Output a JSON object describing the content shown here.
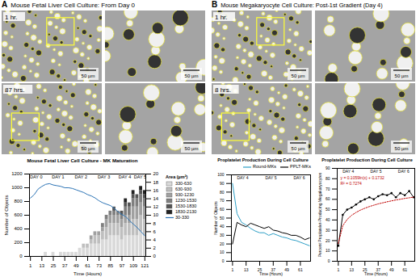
{
  "figure": {
    "panels": [
      {
        "label": "A",
        "title": "Mouse Fetal Liver Cell Culture: From Day 0",
        "images": [
          {
            "time": "1 hr.",
            "scale_bar": "50 µm",
            "zoom_scale_bar": "50 µm"
          },
          {
            "time": "87 hrs.",
            "scale_bar": "50 µm",
            "zoom_scale_bar": "50 µm"
          }
        ]
      },
      {
        "label": "B",
        "title": "Mouse Megakaryocyte Cell Culture: Post-1st Gradient (Day 4)",
        "images": [
          {
            "time": "1 hr.",
            "scale_bar": "50 µm",
            "zoom_scale_bar": "50 µm"
          },
          {
            "time": "8 hrs.",
            "scale_bar": "50 µm",
            "zoom_scale_bar": "50 µm"
          }
        ]
      }
    ]
  },
  "chart_data": [
    {
      "type": "bar_line",
      "title": "Mouse Fetal Liver Cell Culture - MK Maturation",
      "x_label": "Time (Hours)",
      "y_label": "Number of Objects",
      "x": [
        1,
        5,
        9,
        13,
        17,
        21,
        25,
        29,
        33,
        37,
        41,
        45,
        49,
        53,
        57,
        61,
        65,
        69,
        73,
        77,
        81,
        85,
        89,
        93,
        97,
        101,
        105,
        109,
        113,
        117,
        121
      ],
      "xlim": [
        0,
        122
      ],
      "xticks": [
        1,
        13,
        25,
        37,
        49,
        61,
        73,
        85,
        97,
        109,
        121
      ],
      "ylim": [
        0,
        1200
      ],
      "yticks": [
        0,
        200,
        400,
        600,
        800,
        1000,
        1200
      ],
      "y2lim": [
        0,
        20
      ],
      "y2ticks": [
        0,
        2,
        4,
        6,
        8,
        10,
        12,
        14,
        16,
        18,
        20
      ],
      "stacked": true,
      "legend": "right",
      "legend_title": "Area (µm²)",
      "annotations": [
        {
          "text": "DAY 0",
          "x": 7
        },
        {
          "text": "DAY 1",
          "x": 30
        },
        {
          "text": "DAY 2",
          "x": 54
        },
        {
          "text": "DAY 3",
          "x": 78
        },
        {
          "text": "DAY 4",
          "x": 100
        },
        {
          "text": "DAY 5",
          "x": 116
        }
      ],
      "series": [
        {
          "name": "330-630",
          "type": "bar",
          "axis": "y2",
          "color": "#d9d9d9",
          "values": [
            0,
            0,
            0,
            0,
            1,
            0,
            1,
            0,
            1,
            1,
            1,
            1,
            1,
            2,
            2,
            2,
            3,
            3,
            3,
            4,
            4,
            5,
            5,
            5,
            4,
            5,
            5,
            5,
            5,
            6,
            5
          ]
        },
        {
          "name": "630-930",
          "type": "bar",
          "axis": "y2",
          "color": "#bfbfbf",
          "values": [
            0,
            0,
            0,
            0,
            0,
            0,
            0,
            0,
            0,
            0,
            0,
            0,
            0,
            0,
            1,
            1,
            1,
            2,
            2,
            2,
            3,
            3,
            3,
            3,
            3,
            3,
            3,
            4,
            4,
            4,
            4
          ]
        },
        {
          "name": "930-1230",
          "type": "bar",
          "axis": "y2",
          "color": "#a0a0a0",
          "values": [
            0,
            0,
            0,
            0,
            0,
            0,
            0,
            0,
            0,
            0,
            0,
            0,
            0,
            0,
            0,
            0,
            1,
            1,
            1,
            1,
            2,
            2,
            2,
            2,
            2,
            2,
            2,
            3,
            3,
            3,
            3
          ]
        },
        {
          "name": "1230-1530",
          "type": "bar",
          "axis": "y2",
          "color": "#7f7f7f",
          "values": [
            0,
            0,
            0,
            0,
            0,
            0,
            0,
            0,
            0,
            0,
            0,
            0,
            0,
            0,
            0,
            0,
            0,
            0,
            0,
            1,
            1,
            1,
            1,
            1,
            1,
            2,
            2,
            2,
            2,
            2,
            2
          ]
        },
        {
          "name": "1530-1830",
          "type": "bar",
          "axis": "y2",
          "color": "#555555",
          "values": [
            0,
            0,
            0,
            0,
            0,
            0,
            0,
            0,
            0,
            0,
            0,
            0,
            0,
            0,
            0,
            0,
            0,
            0,
            0,
            0,
            0,
            0,
            1,
            0,
            1,
            1,
            1,
            1,
            1,
            1,
            1
          ]
        },
        {
          "name": "1830-2130",
          "type": "bar",
          "axis": "y2",
          "color": "#222222",
          "values": [
            0,
            0,
            0,
            0,
            0,
            0,
            0,
            0,
            0,
            0,
            0,
            0,
            0,
            0,
            0,
            0,
            0,
            0,
            0,
            0,
            0,
            0,
            0,
            0,
            0,
            1,
            0,
            1,
            0,
            1,
            1
          ]
        },
        {
          "name": "30-330",
          "type": "line",
          "color": "#2e75b6",
          "values": [
            850,
            900,
            980,
            1020,
            1050,
            1060,
            1040,
            1030,
            1020,
            1000,
            1000,
            990,
            970,
            950,
            930,
            900,
            880,
            850,
            810,
            780,
            760,
            740,
            700,
            650,
            610,
            580,
            520,
            470,
            420,
            360,
            300
          ]
        }
      ]
    },
    {
      "type": "line",
      "title": "Proplatelet Production During Cell Culture",
      "x_label": "Time (Hours)",
      "y_label": "Number of Objects",
      "x": [
        1,
        5,
        9,
        13,
        17,
        21,
        25,
        29,
        33,
        37,
        41,
        45,
        49,
        53,
        57,
        61,
        65,
        69
      ],
      "xlim": [
        0,
        70
      ],
      "xticks": [
        1,
        13,
        25,
        37,
        49,
        61
      ],
      "ylim": [
        0,
        100
      ],
      "yticks": [
        0,
        10,
        20,
        30,
        40,
        50,
        60,
        70,
        80,
        90,
        100
      ],
      "legend": "top-right",
      "annotations": [
        {
          "text": "DAY 4",
          "x": 10
        },
        {
          "text": "DAY 5",
          "x": 35
        },
        {
          "text": "DAY 6",
          "x": 60
        }
      ],
      "series": [
        {
          "name": "Round-MKs",
          "color": "#2e9fc6",
          "values": [
            90,
            55,
            45,
            42,
            38,
            35,
            33,
            33,
            30,
            32,
            30,
            28,
            27,
            25,
            24,
            22,
            20,
            18
          ]
        },
        {
          "name": "PPLT-MKs",
          "color": "#000000",
          "values": [
            20,
            45,
            42,
            40,
            44,
            42,
            40,
            38,
            40,
            36,
            35,
            33,
            32,
            30,
            30,
            28,
            25,
            27
          ]
        }
      ]
    },
    {
      "type": "line",
      "title": "Proplatelet Production During Cell Culture",
      "x_label": "Time (Hours)",
      "y_label": "Percent Proplatelet-Producing Megakaryocytes",
      "x": [
        1,
        5,
        9,
        13,
        17,
        21,
        25,
        29,
        33,
        37,
        41,
        45,
        49,
        53,
        57,
        61,
        65,
        69
      ],
      "xlim": [
        0,
        70
      ],
      "xticks": [
        1,
        13,
        25,
        37,
        49,
        61
      ],
      "ylim": [
        0,
        90
      ],
      "yticks": [
        0,
        10,
        20,
        30,
        40,
        50,
        60,
        70,
        80,
        90
      ],
      "annotations": [
        {
          "text": "DAY 4",
          "x": 10
        },
        {
          "text": "DAY 5",
          "x": 35
        },
        {
          "text": "DAY 6",
          "x": 60
        },
        {
          "text": "y = 0.1059ln(x) + 0.1732",
          "color": "#c00000"
        },
        {
          "text": "R² = 0.7274",
          "color": "#c00000"
        }
      ],
      "series": [
        {
          "color": "#000000",
          "marker": "circle",
          "values": [
            15,
            45,
            50,
            52,
            55,
            58,
            60,
            62,
            60,
            63,
            65,
            64,
            66,
            62,
            66,
            64,
            68,
            62
          ]
        },
        {
          "color": "#c00000",
          "line_style": "dotted",
          "values": [
            17.3,
            34.4,
            40.6,
            44.5,
            47.3,
            49.6,
            51.4,
            53.0,
            54.3,
            55.6,
            56.6,
            57.6,
            58.5,
            59.4,
            60.1,
            60.9,
            61.5,
            62.2
          ]
        }
      ]
    }
  ]
}
